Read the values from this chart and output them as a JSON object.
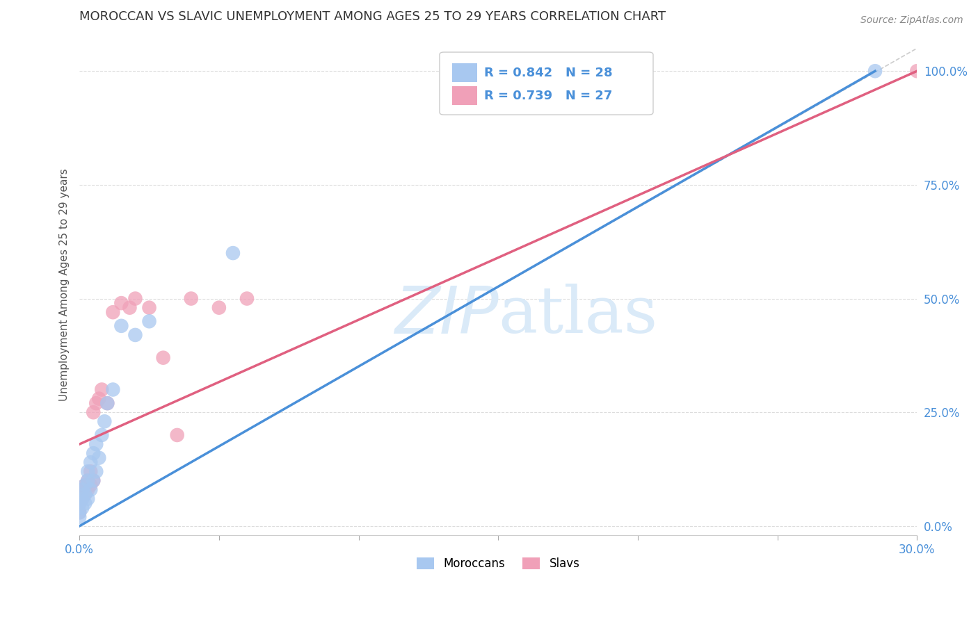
{
  "title": "MOROCCAN VS SLAVIC UNEMPLOYMENT AMONG AGES 25 TO 29 YEARS CORRELATION CHART",
  "source": "Source: ZipAtlas.com",
  "ylabel_label": "Unemployment Among Ages 25 to 29 years",
  "xlim": [
    0,
    0.3
  ],
  "ylim": [
    -0.02,
    1.08
  ],
  "moroccan_color": "#a8c8f0",
  "slavic_color": "#f0a0b8",
  "moroccan_line_color": "#4a90d9",
  "slavic_line_color": "#e06080",
  "diagonal_color": "#cccccc",
  "watermark_color": "#daeaf8",
  "moroccan_x": [
    0.0,
    0.0,
    0.0,
    0.001,
    0.001,
    0.001,
    0.002,
    0.002,
    0.002,
    0.003,
    0.003,
    0.003,
    0.004,
    0.004,
    0.005,
    0.005,
    0.006,
    0.006,
    0.007,
    0.008,
    0.009,
    0.01,
    0.012,
    0.015,
    0.02,
    0.025,
    0.055,
    0.285
  ],
  "moroccan_y": [
    0.02,
    0.03,
    0.05,
    0.04,
    0.06,
    0.08,
    0.05,
    0.07,
    0.09,
    0.06,
    0.1,
    0.12,
    0.08,
    0.14,
    0.1,
    0.16,
    0.12,
    0.18,
    0.15,
    0.2,
    0.23,
    0.27,
    0.3,
    0.44,
    0.42,
    0.45,
    0.6,
    1.0
  ],
  "slavic_x": [
    0.0,
    0.0,
    0.001,
    0.001,
    0.002,
    0.002,
    0.003,
    0.003,
    0.004,
    0.004,
    0.005,
    0.005,
    0.006,
    0.007,
    0.008,
    0.01,
    0.012,
    0.015,
    0.018,
    0.02,
    0.025,
    0.03,
    0.035,
    0.04,
    0.05,
    0.06,
    0.3
  ],
  "slavic_y": [
    0.03,
    0.05,
    0.06,
    0.08,
    0.07,
    0.09,
    0.08,
    0.1,
    0.09,
    0.12,
    0.1,
    0.25,
    0.27,
    0.28,
    0.3,
    0.27,
    0.47,
    0.49,
    0.48,
    0.5,
    0.48,
    0.37,
    0.2,
    0.5,
    0.48,
    0.5,
    1.0
  ],
  "moroccan_line_x": [
    0.0,
    0.285
  ],
  "moroccan_line_y": [
    0.0,
    1.0
  ],
  "slavic_line_x": [
    0.0,
    0.3
  ],
  "slavic_line_y": [
    0.18,
    1.0
  ]
}
